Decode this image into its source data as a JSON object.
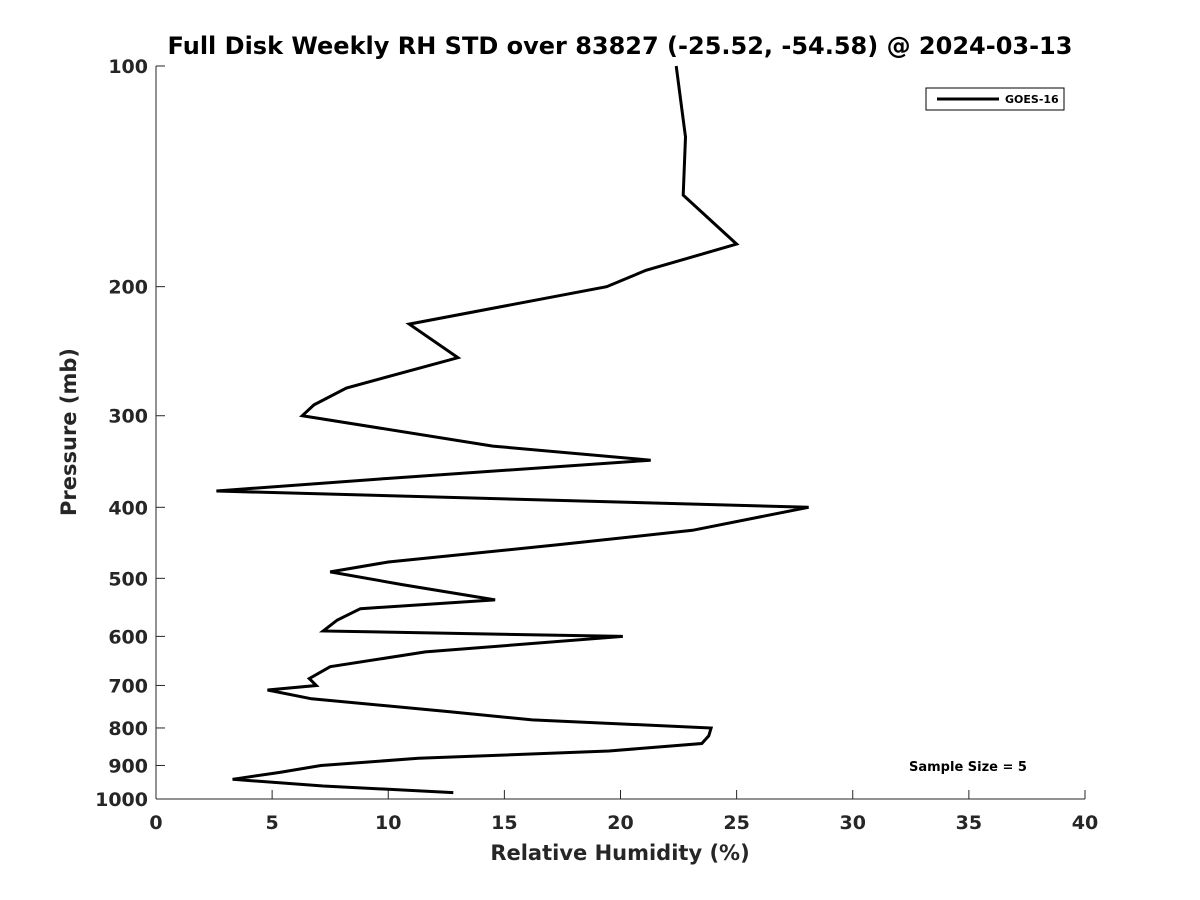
{
  "chart_data": {
    "type": "line",
    "title": "Full Disk Weekly RH STD over 83827 (-25.52, -54.58) @ 2024-03-13",
    "xlabel": "Relative Humidity (%)",
    "ylabel": "Pressure (mb)",
    "xlim": [
      0,
      40
    ],
    "ylim": [
      100,
      1000
    ],
    "y_scale": "log",
    "y_reversed": true,
    "xticks": [
      0,
      5,
      10,
      15,
      20,
      25,
      30,
      35,
      40
    ],
    "yticks": [
      100,
      200,
      300,
      400,
      500,
      600,
      700,
      800,
      900,
      1000
    ],
    "grid": false,
    "legend_position": "top-right",
    "series": [
      {
        "name": "GOES-16",
        "color": "#000000",
        "points": [
          [
            22.4,
            100
          ],
          [
            22.8,
            125
          ],
          [
            22.7,
            150
          ],
          [
            25.0,
            175
          ],
          [
            21.1,
            190
          ],
          [
            19.4,
            200
          ],
          [
            10.9,
            225
          ],
          [
            13.0,
            250
          ],
          [
            8.2,
            275
          ],
          [
            6.8,
            290
          ],
          [
            6.3,
            300
          ],
          [
            14.5,
            330
          ],
          [
            21.3,
            345
          ],
          [
            10.1,
            365
          ],
          [
            2.6,
            380
          ],
          [
            28.1,
            400
          ],
          [
            23.1,
            430
          ],
          [
            17.3,
            450
          ],
          [
            10.0,
            475
          ],
          [
            7.5,
            490
          ],
          [
            10.6,
            510
          ],
          [
            14.6,
            535
          ],
          [
            8.8,
            550
          ],
          [
            7.8,
            570
          ],
          [
            7.2,
            590
          ],
          [
            20.1,
            600
          ],
          [
            11.6,
            630
          ],
          [
            7.5,
            660
          ],
          [
            6.6,
            685
          ],
          [
            6.9,
            700
          ],
          [
            4.8,
            710
          ],
          [
            6.7,
            730
          ],
          [
            12.6,
            760
          ],
          [
            16.2,
            780
          ],
          [
            23.9,
            800
          ],
          [
            23.8,
            820
          ],
          [
            23.5,
            840
          ],
          [
            19.5,
            860
          ],
          [
            11.3,
            880
          ],
          [
            7.1,
            900
          ],
          [
            5.3,
            920
          ],
          [
            3.3,
            940
          ],
          [
            7.2,
            960
          ],
          [
            12.8,
            980
          ]
        ]
      }
    ],
    "annotations": [
      {
        "text": "Sample Size = 5"
      }
    ]
  }
}
